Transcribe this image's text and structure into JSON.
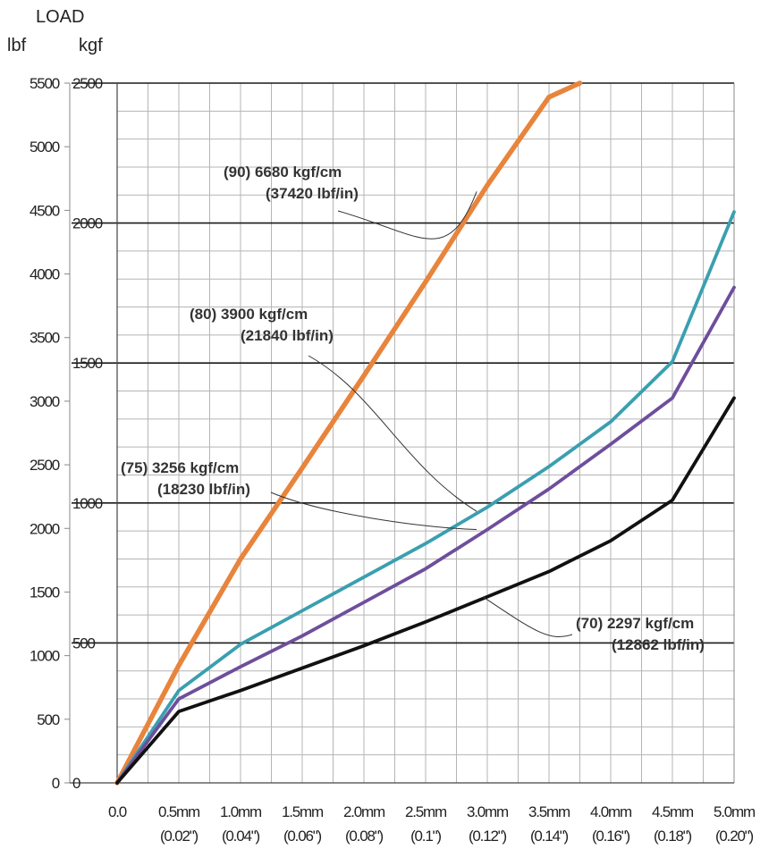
{
  "chart_data": {
    "type": "line",
    "y_title": "LOAD",
    "y_unit_left": "lbf",
    "y_unit_right": "kgf",
    "lbf_ticks": [
      "0",
      "500",
      "1000",
      "1500",
      "2000",
      "2500",
      "3000",
      "3500",
      "4000",
      "4500",
      "5000",
      "5500"
    ],
    "kgf_ticks": [
      "0",
      "500",
      "1000",
      "1500",
      "2000",
      "2500"
    ],
    "x_ticks_mm": [
      "0.0",
      "0.5mm",
      "1.0mm",
      "1.5mm",
      "2.0mm",
      "2.5mm",
      "3.0mm",
      "3.5mm",
      "4.0mm",
      "4.5mm",
      "5.0mm"
    ],
    "x_ticks_in": [
      "",
      "(0.02\")",
      "(0.04\")",
      "(0.06\")",
      "(0.08\")",
      "(0.1\")",
      "(0.12\")",
      "(0.14\")",
      "(0.16\")",
      "(0.18\")",
      "(0.20\")"
    ],
    "xlim": [
      0,
      5
    ],
    "ylim": [
      0,
      2500
    ],
    "grid": true,
    "series": [
      {
        "name": "",
        "color": "#e8843c",
        "x": [
          0,
          0.5,
          1.0,
          1.5,
          2.0,
          2.5,
          3.0,
          3.5,
          3.75
        ],
        "y": [
          0,
          420,
          800,
          1125,
          1455,
          1790,
          2135,
          2450,
          2500
        ]
      },
      {
        "name": "",
        "color": "#3a9fb0",
        "x": [
          0,
          0.5,
          1.0,
          1.5,
          2.0,
          2.5,
          3.0,
          3.5,
          4.0,
          4.5,
          5.0
        ],
        "y": [
          0,
          330,
          495,
          615,
          735,
          855,
          985,
          1130,
          1290,
          1505,
          2040
        ]
      },
      {
        "name": "",
        "color": "#6e4e9c",
        "x": [
          0,
          0.5,
          1.0,
          1.5,
          2.0,
          2.5,
          3.0,
          3.5,
          4.0,
          4.5,
          5.0
        ],
        "y": [
          0,
          300,
          415,
          525,
          645,
          765,
          905,
          1050,
          1210,
          1375,
          1770
        ]
      },
      {
        "name": "",
        "color": "#111111",
        "x": [
          0,
          0.5,
          1.0,
          1.5,
          2.0,
          2.5,
          3.0,
          3.5,
          4.0,
          4.5,
          5.0
        ],
        "y": [
          0,
          255,
          330,
          410,
          490,
          575,
          665,
          755,
          865,
          1010,
          1375
        ]
      }
    ],
    "annotations": [
      {
        "line1": "(90) 6680 kgf/cm",
        "line2": "(37420 lbf/in)"
      },
      {
        "line1": "(80) 3900 kgf/cm",
        "line2": "(21840 lbf/in)"
      },
      {
        "line1": "(75) 3256 kgf/cm",
        "line2": "(18230 lbf/in)"
      },
      {
        "line1": "(70) 2297 kgf/cm",
        "line2": "(12862 lbf/in)"
      }
    ]
  }
}
